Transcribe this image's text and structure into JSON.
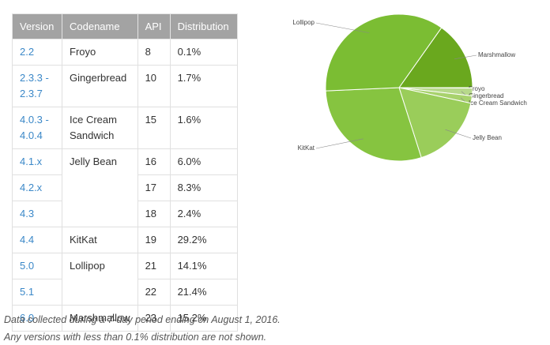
{
  "table": {
    "header": [
      "Version",
      "Codename",
      "API",
      "Distribution"
    ],
    "groups": [
      {
        "codename": "Froyo",
        "versions": [
          {
            "version": "2.2",
            "api": "8",
            "distribution": "0.1%"
          }
        ]
      },
      {
        "codename": "Gingerbread",
        "versions": [
          {
            "version": "2.3.3 - 2.3.7",
            "api": "10",
            "distribution": "1.7%"
          }
        ]
      },
      {
        "codename": "Ice Cream Sandwich",
        "versions": [
          {
            "version": "4.0.3 - 4.0.4",
            "api": "15",
            "distribution": "1.6%"
          }
        ]
      },
      {
        "codename": "Jelly Bean",
        "versions": [
          {
            "version": "4.1.x",
            "api": "16",
            "distribution": "6.0%"
          },
          {
            "version": "4.2.x",
            "api": "17",
            "distribution": "8.3%"
          },
          {
            "version": "4.3",
            "api": "18",
            "distribution": "2.4%"
          }
        ]
      },
      {
        "codename": "KitKat",
        "versions": [
          {
            "version": "4.4",
            "api": "19",
            "distribution": "29.2%"
          }
        ]
      },
      {
        "codename": "Lollipop",
        "versions": [
          {
            "version": "5.0",
            "api": "21",
            "distribution": "14.1%"
          },
          {
            "version": "5.1",
            "api": "22",
            "distribution": "21.4%"
          }
        ]
      },
      {
        "codename": "Marshmallow",
        "versions": [
          {
            "version": "6.0",
            "api": "23",
            "distribution": "15.2%"
          }
        ]
      }
    ]
  },
  "notes": [
    "Data collected during a 7-day period ending on August 1, 2016.",
    "Any versions with less than 0.1% distribution are not shown."
  ],
  "chart_data": {
    "type": "pie",
    "categories": [
      "Marshmallow",
      "Froyo",
      "Gingerbread",
      "Ice Cream Sandwich",
      "Jelly Bean",
      "KitKat",
      "Lollipop"
    ],
    "values": [
      15.2,
      0.1,
      1.7,
      1.6,
      16.7,
      29.2,
      35.5
    ],
    "colors": [
      "#6aa81e",
      "#c5e1a5",
      "#b7d98b",
      "#a8d26d",
      "#9acd5a",
      "#86c440",
      "#7bbd33"
    ]
  }
}
